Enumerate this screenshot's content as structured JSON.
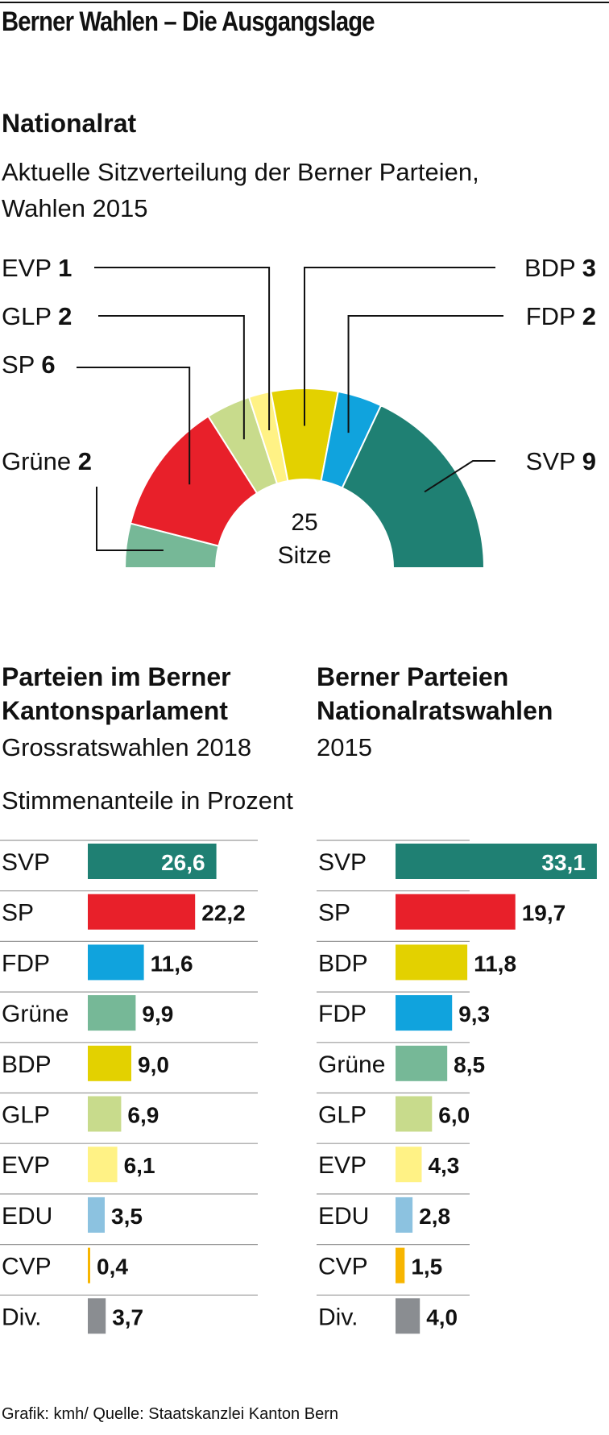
{
  "title": "Berner Wahlen – Die Ausgangslage",
  "colors": {
    "SVP": "#1f8073",
    "SP": "#e8202a",
    "FDP": "#10a3dd",
    "Grüne": "#76b897",
    "BDP": "#e3d100",
    "GLP": "#c8db8c",
    "EVP": "#fff285",
    "EDU": "#8cc2e0",
    "CVP": "#f7b500",
    "Div.": "#8a8d91"
  },
  "nationalrat": {
    "heading": "Nationalrat",
    "subtitle_lines": [
      "Aktuelle Sitzverteilung der Berner Parteien,",
      "Wahlen 2015"
    ],
    "center_number": "25",
    "center_label": "Sitze"
  },
  "bars_left": {
    "heading_lines": [
      "Parteien im Berner",
      "Kantonsparlament"
    ],
    "subtitle": "Grossratswahlen 2018"
  },
  "bars_right": {
    "heading_lines": [
      "Berner Parteien",
      "Nationalratswahlen"
    ],
    "subtitle": "2015"
  },
  "bars_unit_label": "Stimmenanteile in Prozent",
  "source": "Grafik: kmh/ Quelle: Staatskanzlei Kanton Bern",
  "chart_data": [
    {
      "type": "pie",
      "variant": "half-donut",
      "total": 25,
      "slices": [
        {
          "label": "Grüne",
          "value": 2,
          "value_label": "2"
        },
        {
          "label": "SP",
          "value": 6,
          "value_label": "6"
        },
        {
          "label": "GLP",
          "value": 2,
          "value_label": "2"
        },
        {
          "label": "EVP",
          "value": 1,
          "value_label": "1"
        },
        {
          "label": "BDP",
          "value": 3,
          "value_label": "3"
        },
        {
          "label": "FDP",
          "value": 2,
          "value_label": "2"
        },
        {
          "label": "SVP",
          "value": 9,
          "value_label": "9"
        }
      ]
    },
    {
      "type": "bar",
      "orientation": "horizontal",
      "categories": [
        "SVP",
        "SP",
        "FDP",
        "Grüne",
        "BDP",
        "GLP",
        "EVP",
        "EDU",
        "CVP",
        "Div."
      ],
      "values": [
        26.6,
        22.2,
        11.6,
        9.9,
        9.0,
        6.9,
        6.1,
        3.5,
        0.4,
        3.7
      ],
      "value_labels": [
        "26,6",
        "22,2",
        "11,6",
        "9,9",
        "9,0",
        "6,9",
        "6,1",
        "3,5",
        "0,4",
        "3,7"
      ]
    },
    {
      "type": "bar",
      "orientation": "horizontal",
      "categories": [
        "SVP",
        "SP",
        "BDP",
        "FDP",
        "Grüne",
        "GLP",
        "EVP",
        "EDU",
        "CVP",
        "Div."
      ],
      "values": [
        33.1,
        19.7,
        11.8,
        9.3,
        8.5,
        6.0,
        4.3,
        2.8,
        1.5,
        4.0
      ],
      "value_labels": [
        "33,1",
        "19,7",
        "11,8",
        "9,3",
        "8,5",
        "6,0",
        "4,3",
        "2,8",
        "1,5",
        "4,0"
      ]
    }
  ]
}
